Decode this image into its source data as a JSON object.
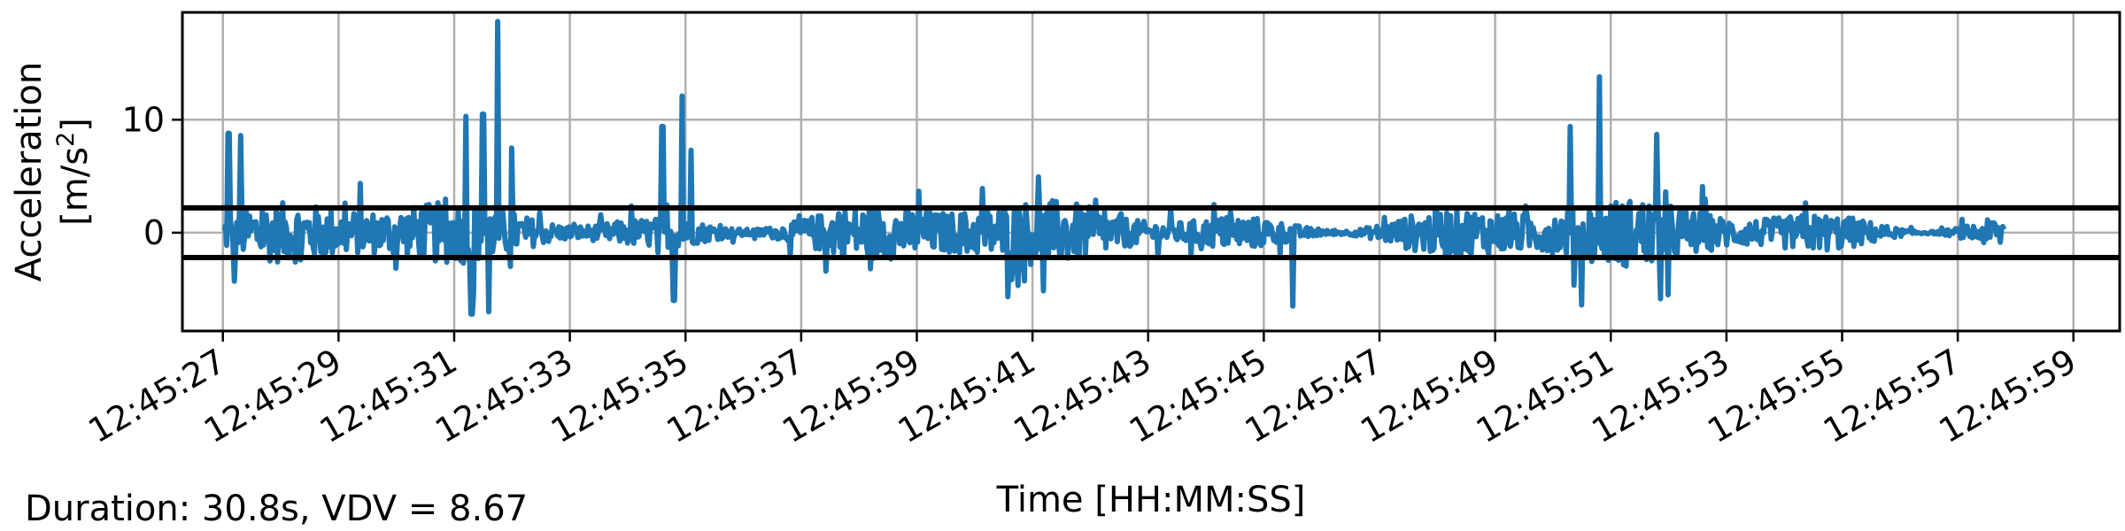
{
  "chart_data": {
    "type": "line",
    "xlabel": "Time [HH:MM:SS]",
    "ylabel_line1": "Acceleration",
    "ylabel_line2_prefix": "[m/s",
    "ylabel_line2_sup": "2",
    "ylabel_line2_suffix": "]",
    "x_start": "12:45:27",
    "x_end": "12:45:57.8",
    "xlim": [
      "12:45:26.3",
      "12:45:59.8"
    ],
    "ylim": [
      -8.7,
      19.5
    ],
    "x_ticks": [
      "12:45:27",
      "12:45:29",
      "12:45:31",
      "12:45:33",
      "12:45:35",
      "12:45:37",
      "12:45:39",
      "12:45:41",
      "12:45:43",
      "12:45:45",
      "12:45:47",
      "12:45:49",
      "12:45:51",
      "12:45:53",
      "12:45:55",
      "12:45:57",
      "12:45:59"
    ],
    "y_ticks": [
      0,
      10
    ],
    "grid": true,
    "series_color": "#1f77b4",
    "threshold_lines": [
      2.2,
      -2.2
    ],
    "threshold_color": "#000000",
    "peaks": [
      {
        "t": "12:45:27.1",
        "y": 8.8
      },
      {
        "t": "12:45:27.2",
        "y": -4.3
      },
      {
        "t": "12:45:27.3",
        "y": 8.6
      },
      {
        "t": "12:45:31.2",
        "y": 10.3
      },
      {
        "t": "12:45:31.3",
        "y": -7.2
      },
      {
        "t": "12:45:31.5",
        "y": 10.5
      },
      {
        "t": "12:45:31.6",
        "y": -7.0
      },
      {
        "t": "12:45:31.75",
        "y": 18.7
      },
      {
        "t": "12:45:32.0",
        "y": 7.5
      },
      {
        "t": "12:45:34.6",
        "y": 9.4
      },
      {
        "t": "12:45:34.8",
        "y": -6.0
      },
      {
        "t": "12:45:34.95",
        "y": 12.1
      },
      {
        "t": "12:45:35.1",
        "y": 7.3
      },
      {
        "t": "12:45:45.5",
        "y": -6.5
      },
      {
        "t": "12:45:50.3",
        "y": 9.4
      },
      {
        "t": "12:45:50.8",
        "y": 13.8
      },
      {
        "t": "12:45:50.5",
        "y": -6.4
      },
      {
        "t": "12:45:51.8",
        "y": 8.7
      },
      {
        "t": "12:45:52.0",
        "y": -5.5
      }
    ]
  },
  "footer": {
    "summary": "Duration: 30.8s, VDV = 8.67"
  }
}
